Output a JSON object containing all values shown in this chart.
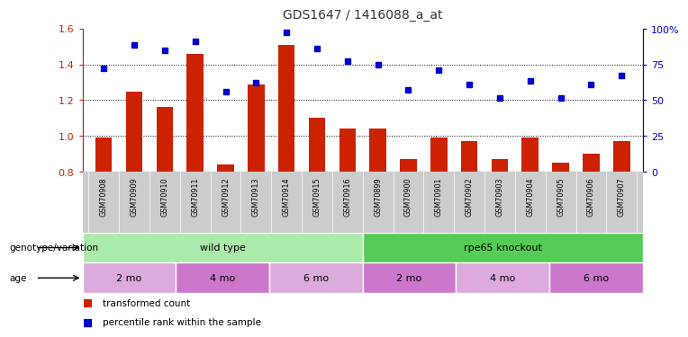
{
  "title": "GDS1647 / 1416088_a_at",
  "samples": [
    "GSM70908",
    "GSM70909",
    "GSM70910",
    "GSM70911",
    "GSM70912",
    "GSM70913",
    "GSM70914",
    "GSM70915",
    "GSM70916",
    "GSM70899",
    "GSM70900",
    "GSM70901",
    "GSM70902",
    "GSM70903",
    "GSM70904",
    "GSM70905",
    "GSM70906",
    "GSM70907"
  ],
  "red_bars": [
    0.99,
    1.25,
    1.16,
    1.46,
    0.84,
    1.29,
    1.51,
    1.1,
    1.04,
    1.04,
    0.87,
    0.99,
    0.97,
    0.87,
    0.99,
    0.85,
    0.9,
    0.97
  ],
  "blue_squares": [
    1.38,
    1.51,
    1.48,
    1.53,
    1.25,
    1.3,
    1.58,
    1.49,
    1.42,
    1.4,
    1.26,
    1.37,
    1.29,
    1.21,
    1.31,
    1.21,
    1.29,
    1.34
  ],
  "ylim_left": [
    0.8,
    1.6
  ],
  "yticks_left": [
    0.8,
    1.0,
    1.2,
    1.4,
    1.6
  ],
  "ylim_right": [
    0,
    100
  ],
  "yticks_right": [
    0,
    25,
    50,
    75,
    100
  ],
  "ytick_labels_right": [
    "0",
    "25",
    "50",
    "75",
    "100%"
  ],
  "bar_color": "#cc2200",
  "square_color": "#0000cc",
  "bar_bottom": 0.8,
  "genotype_groups": [
    {
      "label": "wild type",
      "start": 0,
      "end": 9,
      "color": "#aaeaaa"
    },
    {
      "label": "rpe65 knockout",
      "start": 9,
      "end": 18,
      "color": "#55cc55"
    }
  ],
  "age_groups": [
    {
      "label": "2 mo",
      "start": 0,
      "end": 3,
      "color": "#ddaadd"
    },
    {
      "label": "4 mo",
      "start": 3,
      "end": 6,
      "color": "#cc77cc"
    },
    {
      "label": "6 mo",
      "start": 6,
      "end": 9,
      "color": "#ddaadd"
    },
    {
      "label": "2 mo",
      "start": 9,
      "end": 12,
      "color": "#cc77cc"
    },
    {
      "label": "4 mo",
      "start": 12,
      "end": 15,
      "color": "#ddaadd"
    },
    {
      "label": "6 mo",
      "start": 15,
      "end": 18,
      "color": "#cc77cc"
    }
  ],
  "xlabel_genotype": "genotype/variation",
  "xlabel_age": "age",
  "legend_red": "transformed count",
  "legend_blue": "percentile rank within the sample",
  "tick_label_color": "#333333",
  "left_axis_color": "#cc2200",
  "right_axis_color": "#0000cc",
  "sample_label_bg": "#cccccc"
}
